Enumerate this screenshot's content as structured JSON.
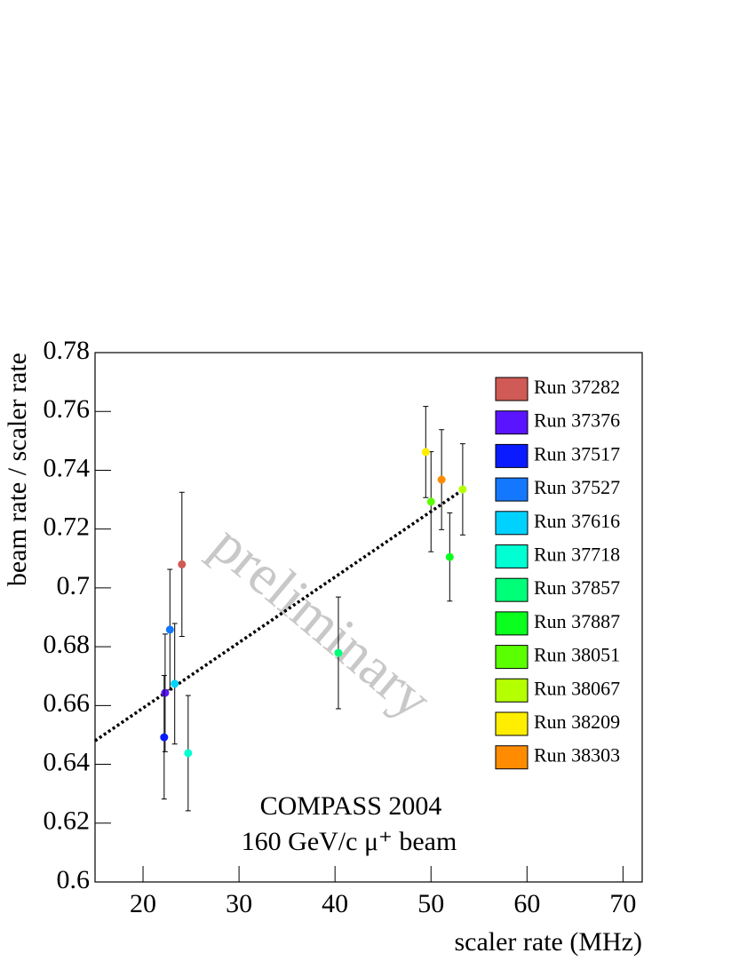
{
  "chart_data": {
    "type": "scatter",
    "x_label": "scaler rate (MHz)",
    "y_label": "beam rate / scaler rate",
    "xlim": [
      15,
      72
    ],
    "ylim": [
      0.6,
      0.78
    ],
    "xticks": [
      20,
      30,
      40,
      50,
      60,
      70
    ],
    "yticks": [
      0.6,
      0.62,
      0.64,
      0.66,
      0.68,
      0.7,
      0.72,
      0.74,
      0.76,
      0.78
    ],
    "legend": "top-right",
    "annotations": [
      "COMPASS 2004",
      "160 GeV/c  μ⁺ beam",
      "preliminary"
    ],
    "fit": {
      "x": [
        15,
        53.6
      ],
      "values": [
        0.648,
        0.734
      ],
      "color": "#000000"
    },
    "series": [
      {
        "name": "Run 37282",
        "color": "#d05a55",
        "x": [
          24.05
        ],
        "values": [
          0.708
        ],
        "errors": [
          0.0245
        ]
      },
      {
        "name": "Run 37376",
        "color": "#5a14ff",
        "x": [
          22.3
        ],
        "values": [
          0.6643
        ],
        "errors": [
          0.02
        ]
      },
      {
        "name": "Run 37517",
        "color": "#0a1cff",
        "x": [
          22.2
        ],
        "values": [
          0.6492
        ],
        "errors": [
          0.021
        ]
      },
      {
        "name": "Run 37527",
        "color": "#1478ff",
        "x": [
          22.8
        ],
        "values": [
          0.6858
        ],
        "errors": [
          0.0205
        ]
      },
      {
        "name": "Run 37616",
        "color": "#00d2ff",
        "x": [
          23.3
        ],
        "values": [
          0.6674
        ],
        "errors": [
          0.0205
        ]
      },
      {
        "name": "Run 37718",
        "color": "#00ffd2",
        "x": [
          24.7
        ],
        "values": [
          0.6438
        ],
        "errors": [
          0.0196
        ]
      },
      {
        "name": "Run 37857",
        "color": "#00ff78",
        "x": [
          40.35
        ],
        "values": [
          0.6779
        ],
        "errors": [
          0.019
        ]
      },
      {
        "name": "Run 37887",
        "color": "#0aff1e",
        "x": [
          51.95
        ],
        "values": [
          0.7105
        ],
        "errors": [
          0.015
        ]
      },
      {
        "name": "Run 38051",
        "color": "#5aff00",
        "x": [
          50.0
        ],
        "values": [
          0.7293
        ],
        "errors": [
          0.017
        ]
      },
      {
        "name": "Run 38067",
        "color": "#b4ff00",
        "x": [
          53.3
        ],
        "values": [
          0.7335
        ],
        "errors": [
          0.0155
        ]
      },
      {
        "name": "Run 38209",
        "color": "#ffee00",
        "x": [
          49.45
        ],
        "values": [
          0.7462
        ],
        "errors": [
          0.0155
        ]
      },
      {
        "name": "Run 38303",
        "color": "#ff8c00",
        "x": [
          51.1
        ],
        "values": [
          0.7368
        ],
        "errors": [
          0.017
        ]
      }
    ]
  }
}
